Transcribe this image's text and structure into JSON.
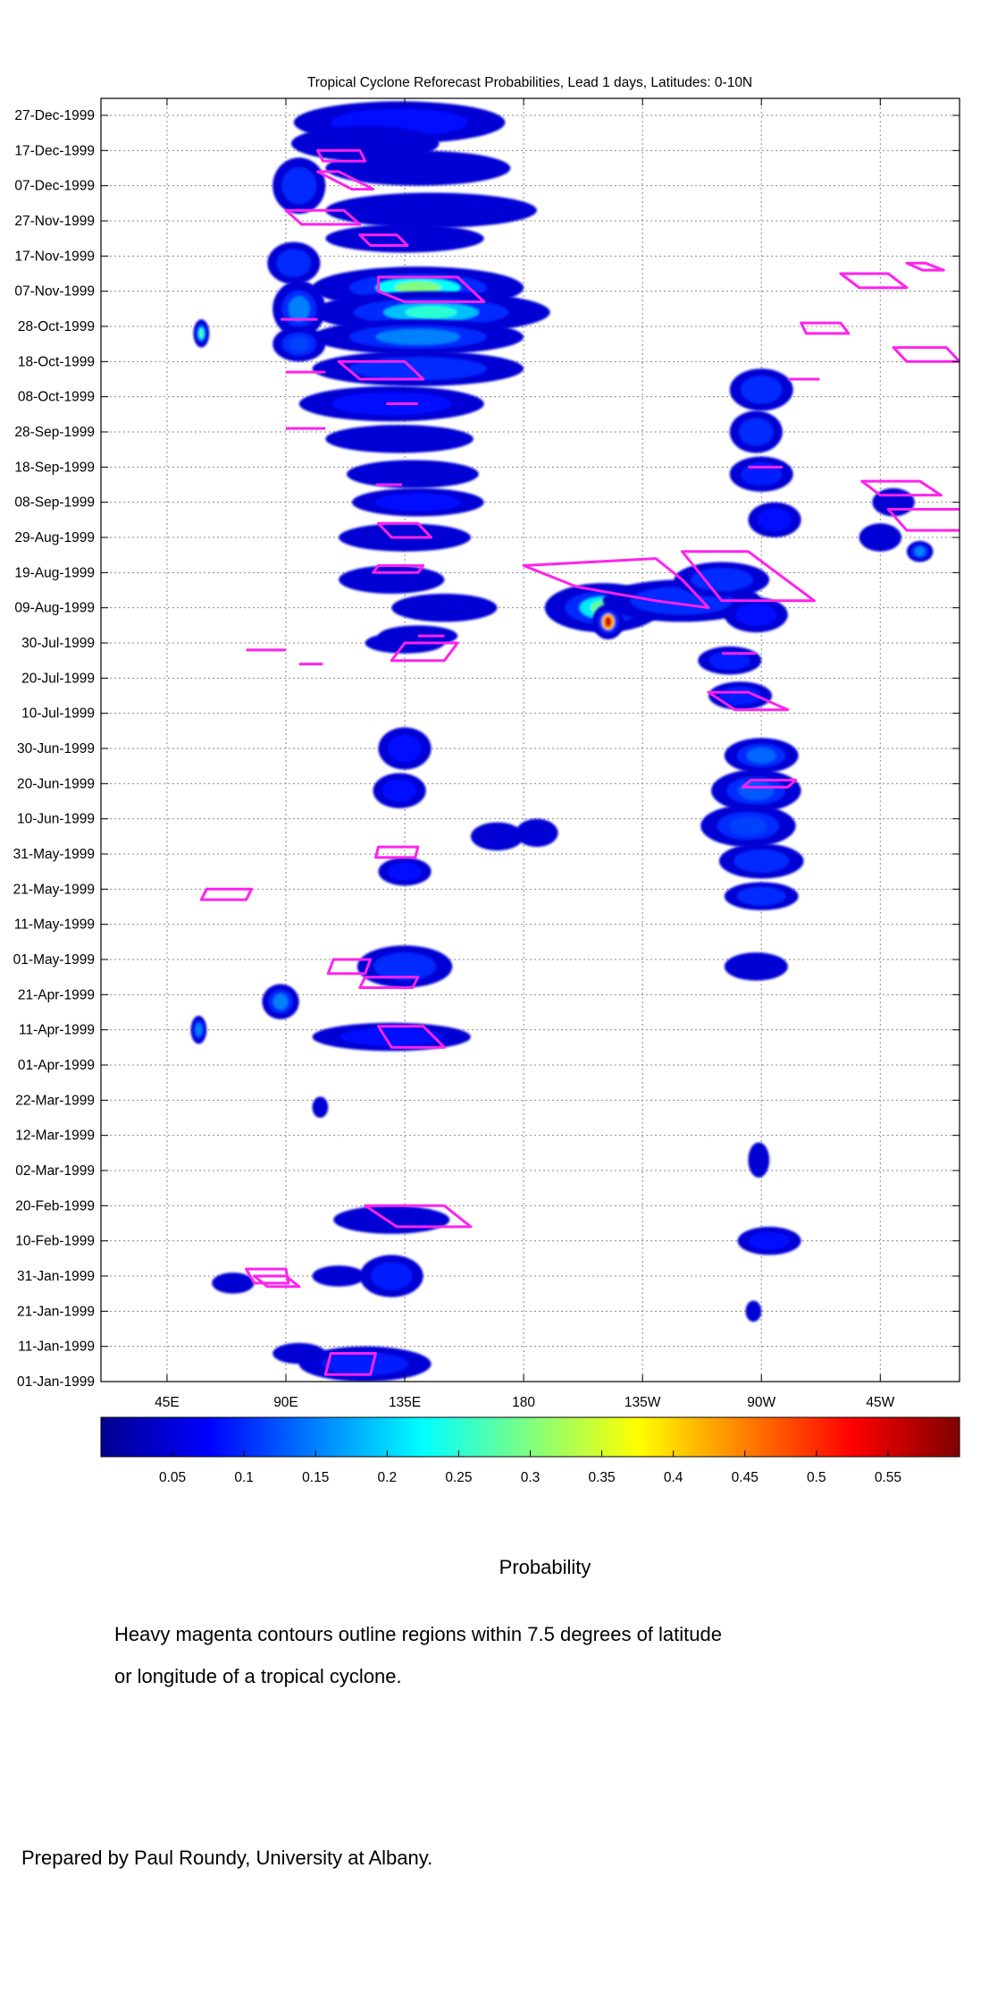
{
  "chart_data": {
    "type": "heatmap",
    "title": "Tropical Cyclone Reforecast Probabilities, Lead 1 days, Latitudes: 0-10N",
    "y_ticks": [
      "27-Dec-1999",
      "17-Dec-1999",
      "07-Dec-1999",
      "27-Nov-1999",
      "17-Nov-1999",
      "07-Nov-1999",
      "28-Oct-1999",
      "18-Oct-1999",
      "08-Oct-1999",
      "28-Sep-1999",
      "18-Sep-1999",
      "08-Sep-1999",
      "29-Aug-1999",
      "19-Aug-1999",
      "09-Aug-1999",
      "30-Jul-1999",
      "20-Jul-1999",
      "10-Jul-1999",
      "30-Jun-1999",
      "20-Jun-1999",
      "10-Jun-1999",
      "31-May-1999",
      "21-May-1999",
      "11-May-1999",
      "01-May-1999",
      "21-Apr-1999",
      "11-Apr-1999",
      "01-Apr-1999",
      "22-Mar-1999",
      "12-Mar-1999",
      "02-Mar-1999",
      "20-Feb-1999",
      "10-Feb-1999",
      "31-Jan-1999",
      "21-Jan-1999",
      "11-Jan-1999",
      "01-Jan-1999"
    ],
    "x_ticks": [
      "45E",
      "90E",
      "135E",
      "180",
      "135W",
      "90W",
      "45W"
    ],
    "x_range_deg_east": [
      20,
      345
    ],
    "grid": true,
    "colorbar": {
      "ticks": [
        "0.05",
        "0.1",
        "0.15",
        "0.2",
        "0.25",
        "0.3",
        "0.35",
        "0.4",
        "0.45",
        "0.5",
        "0.55"
      ],
      "range": [
        0.0,
        0.6
      ],
      "label": "Probability"
    },
    "notes": [
      "Heavy magenta contours outline regions within 7.5 degrees of latitude",
      "or longitude of a tropical cyclone."
    ],
    "credit": "Prepared by Paul Roundy, University at Albany.",
    "colors": {
      "contour": "#ff22ee",
      "grid": "#888888"
    },
    "blobs": [
      {
        "lon": 133,
        "day": 358,
        "rx": 40,
        "ry": 6,
        "p": 0.08
      },
      {
        "lon": 120,
        "day": 352,
        "rx": 28,
        "ry": 5,
        "p": 0.07
      },
      {
        "lon": 95,
        "day": 340,
        "rx": 10,
        "ry": 8,
        "p": 0.1
      },
      {
        "lon": 140,
        "day": 345,
        "rx": 35,
        "ry": 5,
        "p": 0.07
      },
      {
        "lon": 145,
        "day": 333,
        "rx": 40,
        "ry": 5,
        "p": 0.07
      },
      {
        "lon": 135,
        "day": 325,
        "rx": 30,
        "ry": 4,
        "p": 0.06
      },
      {
        "lon": 93,
        "day": 318,
        "rx": 10,
        "ry": 6,
        "p": 0.12
      },
      {
        "lon": 140,
        "day": 311,
        "rx": 40,
        "ry": 6,
        "p": 0.3
      },
      {
        "lon": 145,
        "day": 304,
        "rx": 45,
        "ry": 6,
        "p": 0.25
      },
      {
        "lon": 140,
        "day": 297,
        "rx": 40,
        "ry": 5,
        "p": 0.2
      },
      {
        "lon": 95,
        "day": 305,
        "rx": 10,
        "ry": 8,
        "p": 0.2
      },
      {
        "lon": 95,
        "day": 295,
        "rx": 10,
        "ry": 5,
        "p": 0.15
      },
      {
        "lon": 58,
        "day": 298,
        "rx": 3,
        "ry": 4,
        "p": 0.28
      },
      {
        "lon": 140,
        "day": 288,
        "rx": 40,
        "ry": 5,
        "p": 0.12
      },
      {
        "lon": 130,
        "day": 278,
        "rx": 35,
        "ry": 5,
        "p": 0.08
      },
      {
        "lon": 133,
        "day": 268,
        "rx": 28,
        "ry": 4,
        "p": 0.07
      },
      {
        "lon": 138,
        "day": 258,
        "rx": 25,
        "ry": 4,
        "p": 0.06
      },
      {
        "lon": 140,
        "day": 250,
        "rx": 25,
        "ry": 4,
        "p": 0.08
      },
      {
        "lon": 135,
        "day": 240,
        "rx": 25,
        "ry": 4,
        "p": 0.07
      },
      {
        "lon": 130,
        "day": 228,
        "rx": 20,
        "ry": 4,
        "p": 0.07
      },
      {
        "lon": 150,
        "day": 220,
        "rx": 20,
        "ry": 4,
        "p": 0.07
      },
      {
        "lon": 140,
        "day": 212,
        "rx": 15,
        "ry": 3,
        "p": 0.06
      },
      {
        "lon": 135,
        "day": 210,
        "rx": 15,
        "ry": 3,
        "p": 0.06
      },
      {
        "lon": 210,
        "day": 220,
        "rx": 22,
        "ry": 7,
        "p": 0.28
      },
      {
        "lon": 212,
        "day": 216,
        "rx": 6,
        "ry": 5,
        "p": 0.55
      },
      {
        "lon": 240,
        "day": 222,
        "rx": 30,
        "ry": 6,
        "p": 0.12
      },
      {
        "lon": 255,
        "day": 228,
        "rx": 18,
        "ry": 5,
        "p": 0.1
      },
      {
        "lon": 268,
        "day": 218,
        "rx": 12,
        "ry": 5,
        "p": 0.08
      },
      {
        "lon": 258,
        "day": 205,
        "rx": 12,
        "ry": 4,
        "p": 0.09
      },
      {
        "lon": 262,
        "day": 195,
        "rx": 12,
        "ry": 4,
        "p": 0.09
      },
      {
        "lon": 270,
        "day": 178,
        "rx": 14,
        "ry": 5,
        "p": 0.18
      },
      {
        "lon": 268,
        "day": 168,
        "rx": 17,
        "ry": 6,
        "p": 0.17
      },
      {
        "lon": 265,
        "day": 158,
        "rx": 18,
        "ry": 6,
        "p": 0.15
      },
      {
        "lon": 270,
        "day": 148,
        "rx": 16,
        "ry": 5,
        "p": 0.12
      },
      {
        "lon": 270,
        "day": 138,
        "rx": 14,
        "ry": 4,
        "p": 0.1
      },
      {
        "lon": 268,
        "day": 118,
        "rx": 12,
        "ry": 4,
        "p": 0.07
      },
      {
        "lon": 270,
        "day": 282,
        "rx": 12,
        "ry": 6,
        "p": 0.1
      },
      {
        "lon": 268,
        "day": 270,
        "rx": 10,
        "ry": 6,
        "p": 0.1
      },
      {
        "lon": 270,
        "day": 258,
        "rx": 12,
        "ry": 5,
        "p": 0.09
      },
      {
        "lon": 275,
        "day": 245,
        "rx": 10,
        "ry": 5,
        "p": 0.08
      },
      {
        "lon": 330,
        "day": 236,
        "rx": 5,
        "ry": 3,
        "p": 0.2
      },
      {
        "lon": 320,
        "day": 250,
        "rx": 8,
        "ry": 4,
        "p": 0.07
      },
      {
        "lon": 315,
        "day": 240,
        "rx": 8,
        "ry": 4,
        "p": 0.07
      },
      {
        "lon": 135,
        "day": 180,
        "rx": 10,
        "ry": 6,
        "p": 0.08
      },
      {
        "lon": 133,
        "day": 168,
        "rx": 10,
        "ry": 5,
        "p": 0.08
      },
      {
        "lon": 170,
        "day": 155,
        "rx": 10,
        "ry": 4,
        "p": 0.07
      },
      {
        "lon": 185,
        "day": 156,
        "rx": 8,
        "ry": 4,
        "p": 0.07
      },
      {
        "lon": 135,
        "day": 145,
        "rx": 10,
        "ry": 4,
        "p": 0.08
      },
      {
        "lon": 135,
        "day": 118,
        "rx": 18,
        "ry": 6,
        "p": 0.12
      },
      {
        "lon": 88,
        "day": 108,
        "rx": 7,
        "ry": 5,
        "p": 0.2
      },
      {
        "lon": 57,
        "day": 100,
        "rx": 3,
        "ry": 4,
        "p": 0.2
      },
      {
        "lon": 130,
        "day": 98,
        "rx": 30,
        "ry": 4,
        "p": 0.08
      },
      {
        "lon": 103,
        "day": 78,
        "rx": 3,
        "ry": 3,
        "p": 0.06
      },
      {
        "lon": 269,
        "day": 63,
        "rx": 4,
        "ry": 5,
        "p": 0.06
      },
      {
        "lon": 130,
        "day": 46,
        "rx": 22,
        "ry": 4,
        "p": 0.07
      },
      {
        "lon": 273,
        "day": 40,
        "rx": 12,
        "ry": 4,
        "p": 0.08
      },
      {
        "lon": 130,
        "day": 30,
        "rx": 12,
        "ry": 6,
        "p": 0.09
      },
      {
        "lon": 110,
        "day": 30,
        "rx": 10,
        "ry": 3,
        "p": 0.06
      },
      {
        "lon": 70,
        "day": 28,
        "rx": 8,
        "ry": 3,
        "p": 0.06
      },
      {
        "lon": 95,
        "day": 8,
        "rx": 10,
        "ry": 3,
        "p": 0.07
      },
      {
        "lon": 120,
        "day": 5,
        "rx": 25,
        "ry": 5,
        "p": 0.09
      },
      {
        "lon": 267,
        "day": 20,
        "rx": 3,
        "ry": 3,
        "p": 0.06
      }
    ],
    "contours": [
      {
        "lon": [
          102,
          118,
          120,
          104
        ],
        "day": [
          350,
          350,
          347,
          347
        ]
      },
      {
        "lon": [
          102,
          110,
          123,
          115
        ],
        "day": [
          344,
          344,
          339,
          339
        ]
      },
      {
        "lon": [
          90,
          112,
          118,
          96
        ],
        "day": [
          333,
          333,
          329,
          329
        ]
      },
      {
        "lon": [
          118,
          132,
          136,
          122
        ],
        "day": [
          326,
          326,
          323,
          323
        ]
      },
      {
        "lon": [
          125,
          155,
          165,
          135,
          125
        ],
        "day": [
          314,
          314,
          307,
          307,
          310
        ]
      },
      {
        "lon": [
          300,
          318,
          325,
          307
        ],
        "day": [
          315,
          315,
          311,
          311
        ]
      },
      {
        "lon": [
          325,
          332,
          339,
          331
        ],
        "day": [
          318,
          318,
          316,
          316
        ]
      },
      {
        "lon": [
          285,
          300,
          303,
          287
        ],
        "day": [
          301,
          301,
          298,
          298
        ]
      },
      {
        "lon": [
          320,
          340,
          345,
          325
        ],
        "day": [
          294,
          294,
          290,
          290
        ]
      },
      {
        "lon": [
          110,
          135,
          142,
          118
        ],
        "day": [
          290,
          290,
          285,
          285
        ]
      },
      {
        "lon": [
          308,
          330,
          338,
          315
        ],
        "day": [
          256,
          256,
          252,
          252
        ]
      },
      {
        "lon": [
          318,
          345,
          352,
          325
        ],
        "day": [
          248,
          248,
          242,
          242
        ]
      },
      {
        "lon": [
          125,
          140,
          145,
          130
        ],
        "day": [
          244,
          244,
          240,
          240
        ]
      },
      {
        "lon": [
          125,
          142,
          140,
          123
        ],
        "day": [
          232,
          232,
          230,
          230
        ]
      },
      {
        "lon": [
          180,
          230,
          240,
          250,
          230,
          200
        ],
        "day": [
          232,
          234,
          228,
          220,
          222,
          226
        ]
      },
      {
        "lon": [
          240,
          265,
          290,
          255
        ],
        "day": [
          236,
          236,
          222,
          222
        ]
      },
      {
        "lon": [
          135,
          155,
          150,
          130
        ],
        "day": [
          210,
          210,
          205,
          205
        ]
      },
      {
        "lon": [
          250,
          265,
          280,
          260
        ],
        "day": [
          196,
          196,
          191,
          191
        ]
      },
      {
        "lon": [
          266,
          283,
          280,
          263
        ],
        "day": [
          171,
          171,
          169,
          169
        ]
      },
      {
        "lon": [
          125,
          140,
          139,
          124
        ],
        "day": [
          152,
          152,
          149,
          149
        ]
      },
      {
        "lon": [
          60,
          77,
          75,
          58
        ],
        "day": [
          140,
          140,
          137,
          137
        ]
      },
      {
        "lon": [
          108,
          122,
          120,
          106
        ],
        "day": [
          120,
          120,
          116,
          116
        ]
      },
      {
        "lon": [
          120,
          140,
          138,
          118
        ],
        "day": [
          115,
          115,
          112,
          112
        ]
      },
      {
        "lon": [
          125,
          142,
          150,
          130
        ],
        "day": [
          101,
          101,
          95,
          95
        ]
      },
      {
        "lon": [
          120,
          150,
          160,
          132
        ],
        "day": [
          50,
          50,
          44,
          44
        ]
      },
      {
        "lon": [
          75,
          90,
          91,
          78
        ],
        "day": [
          32,
          32,
          28,
          28
        ]
      },
      {
        "lon": [
          78,
          90,
          95,
          83
        ],
        "day": [
          30,
          30,
          27,
          27
        ]
      },
      {
        "lon": [
          107,
          124,
          122,
          105
        ],
        "day": [
          8,
          8,
          2,
          2
        ]
      }
    ],
    "segments": [
      {
        "lon": [
          88,
          102
        ],
        "day": 302
      },
      {
        "lon": [
          90,
          105
        ],
        "day": 271
      },
      {
        "lon": [
          128,
          140
        ],
        "day": 278
      },
      {
        "lon": [
          124,
          134
        ],
        "day": 255
      },
      {
        "lon": [
          90,
          105
        ],
        "day": 287
      },
      {
        "lon": [
          95,
          104
        ],
        "day": 204
      },
      {
        "lon": [
          75,
          90
        ],
        "day": 208
      },
      {
        "lon": [
          280,
          292
        ],
        "day": 285
      },
      {
        "lon": [
          265,
          278
        ],
        "day": 260
      },
      {
        "lon": [
          255,
          268
        ],
        "day": 207
      },
      {
        "lon": [
          140,
          150
        ],
        "day": 212
      }
    ]
  }
}
